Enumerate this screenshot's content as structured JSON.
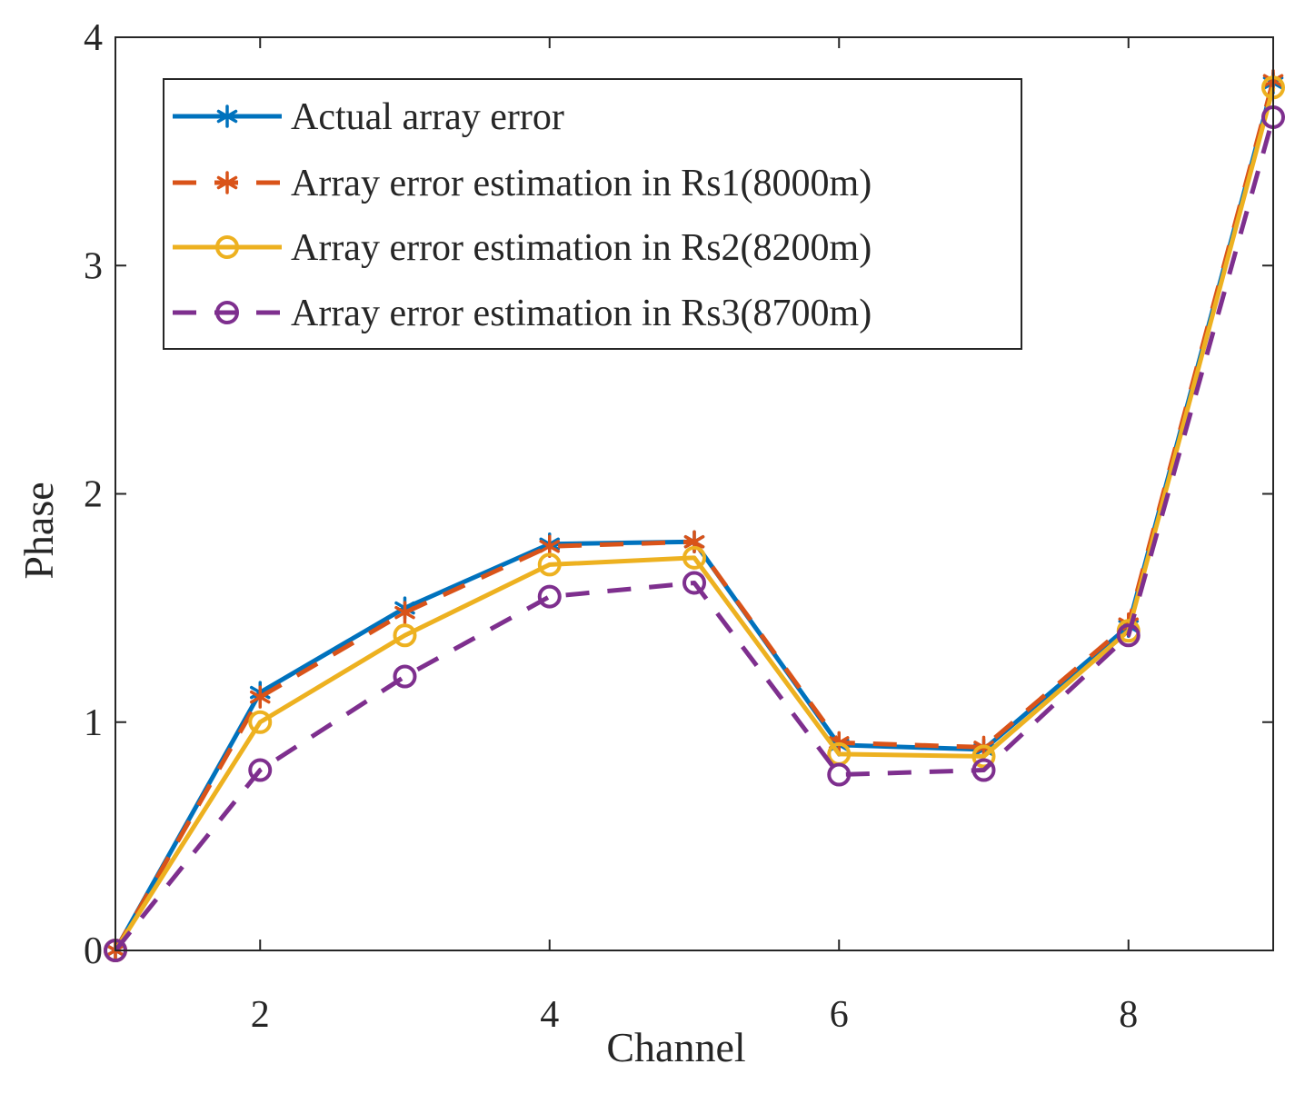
{
  "chart_data": {
    "type": "line",
    "title": "",
    "xlabel": "Channel",
    "ylabel": "Phase",
    "xlim": [
      1,
      9
    ],
    "ylim": [
      0,
      4
    ],
    "xticks": [
      2,
      4,
      6,
      8
    ],
    "xtick_labels": [
      "2",
      "4",
      "6",
      "8"
    ],
    "yticks": [
      0,
      1,
      2,
      3,
      4
    ],
    "ytick_labels": [
      "0",
      "1",
      "2",
      "3",
      "4"
    ],
    "grid": false,
    "legend_position": "top-left",
    "x": [
      1,
      2,
      3,
      4,
      5,
      6,
      7,
      8,
      9
    ],
    "series": [
      {
        "name": "Actual array error",
        "color": "#0072BD",
        "line_style": "solid",
        "marker": "asterisk",
        "values": [
          0,
          1.13,
          1.5,
          1.78,
          1.79,
          0.9,
          0.88,
          1.42,
          3.8
        ]
      },
      {
        "name": "Array error estimation in Rs1(8000m)",
        "color": "#D95319",
        "line_style": "dashed",
        "marker": "asterisk",
        "values": [
          0,
          1.11,
          1.48,
          1.77,
          1.79,
          0.91,
          0.89,
          1.43,
          3.81
        ]
      },
      {
        "name": "Array error estimation in Rs2(8200m)",
        "color": "#EDB120",
        "line_style": "solid",
        "marker": "circle",
        "values": [
          0,
          1.0,
          1.38,
          1.69,
          1.72,
          0.86,
          0.85,
          1.4,
          3.78
        ]
      },
      {
        "name": "Array error estimation in Rs3(8700m)",
        "color": "#7E2F8E",
        "line_style": "dashed",
        "marker": "circle",
        "values": [
          0,
          0.79,
          1.2,
          1.55,
          1.61,
          0.77,
          0.79,
          1.38,
          3.65
        ]
      }
    ]
  }
}
